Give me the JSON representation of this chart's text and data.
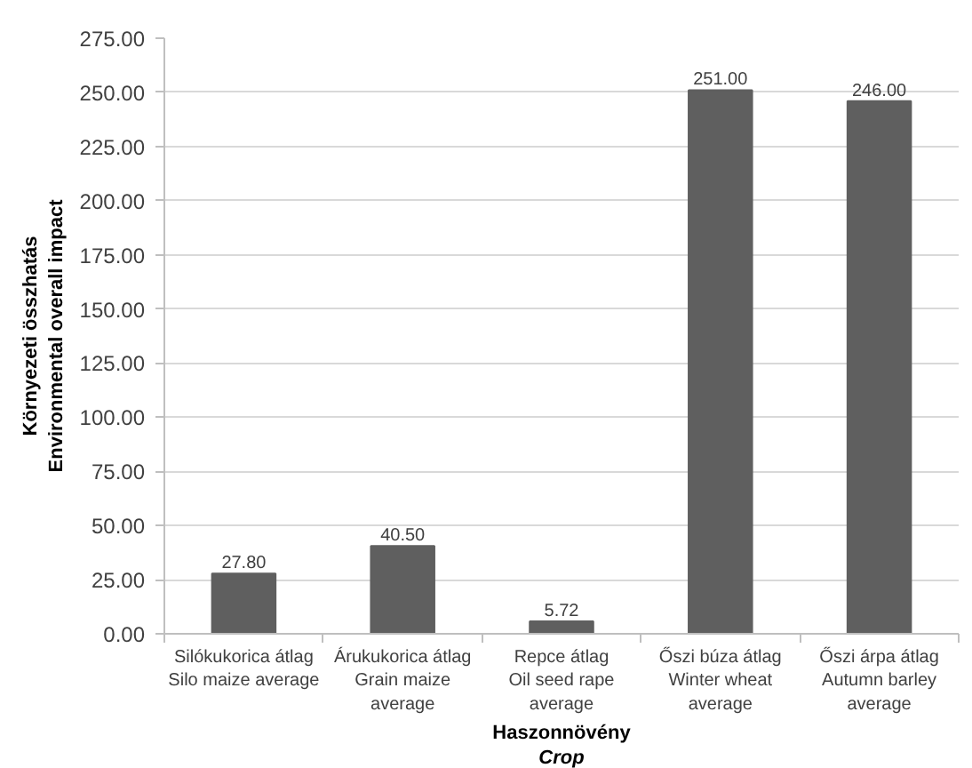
{
  "chart_data": {
    "type": "bar",
    "categories": [
      "Silókukorica átlag\nSilo maize average",
      "Árukukorica átlag\nGrain maize\naverage",
      "Repce átlag\nOil seed rape\naverage",
      "Őszi búza átlag\nWinter wheat\naverage",
      "Őszi árpa átlag\nAutumn barley\naverage"
    ],
    "values": [
      27.8,
      40.5,
      5.72,
      251,
      246
    ],
    "value_labels": [
      "27.80",
      "40.50",
      "5.72",
      "251.00",
      "246.00"
    ],
    "color": "#5f5f5f",
    "xlabel": "Haszonnövény\nCrop",
    "ylabel": "Környezeti összhatás\nEnvironmental overall impact",
    "ylim": [
      0,
      275
    ],
    "yticks": [
      {
        "value": 0,
        "label": "0.00"
      },
      {
        "value": 25,
        "label": "25.00"
      },
      {
        "value": 50,
        "label": "50.00"
      },
      {
        "value": 75,
        "label": "75.00"
      },
      {
        "value": 100,
        "label": "100.00"
      },
      {
        "value": 125,
        "label": "125.00"
      },
      {
        "value": 150,
        "label": "150.00"
      },
      {
        "value": 175,
        "label": "175.00"
      },
      {
        "value": 200,
        "label": "200.00"
      },
      {
        "value": 225,
        "label": "225.00"
      },
      {
        "value": 250,
        "label": "250.00"
      },
      {
        "value": 275,
        "label": "275.00"
      }
    ],
    "grid": "y"
  }
}
